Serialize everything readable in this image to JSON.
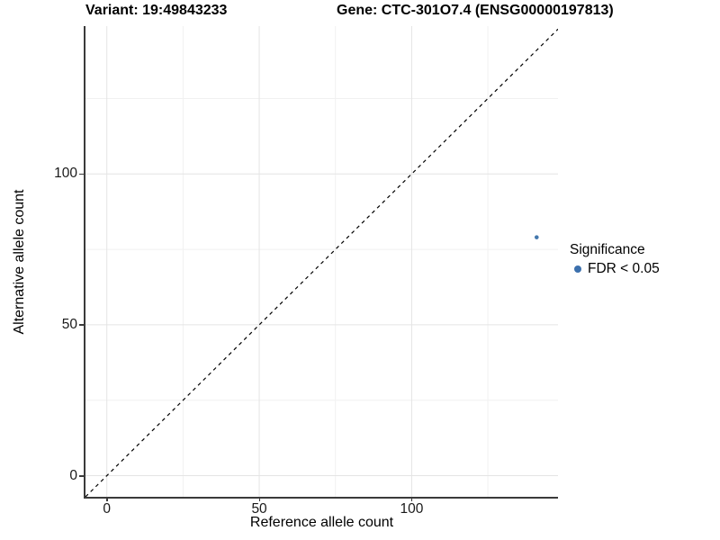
{
  "chart_data": {
    "type": "scatter",
    "title_left": "Variant: 19:49843233",
    "title_right": "Gene: CTC-301O7.4 (ENSG00000197813)",
    "xlabel": "Reference allele count",
    "ylabel": "Alternative allele count",
    "xlim": [
      -7,
      148
    ],
    "ylim": [
      -7,
      149
    ],
    "x_major_ticks": [
      0,
      50,
      100
    ],
    "y_major_ticks": [
      0,
      50,
      100
    ],
    "x_minor_ticks": [
      25,
      75,
      125
    ],
    "y_minor_ticks": [
      25,
      75,
      125
    ],
    "grid": "on",
    "identity_line": {
      "style": "dashed",
      "color": "#000000",
      "from": [
        -7,
        -7
      ],
      "to": [
        148,
        148
      ]
    },
    "series": [
      {
        "name": "FDR < 0.05",
        "color": "#4478ad",
        "points": [
          [
            141,
            79
          ]
        ],
        "point_radius": 2.3
      }
    ],
    "legend": {
      "position": "right",
      "title": "Significance",
      "items": [
        {
          "label": "FDR < 0.05",
          "color": "#3c70ad"
        }
      ]
    },
    "colors": {
      "axis_line": "#3a3a3a",
      "grid_major": "#e4e4e4",
      "grid_minor": "#f1f1f1",
      "tick_text": "#1a1a1a"
    }
  }
}
